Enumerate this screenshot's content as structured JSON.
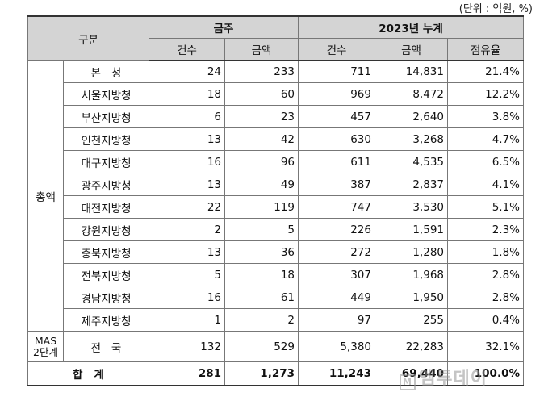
{
  "unit_note": "(단위 : 억원, %)",
  "header": {
    "category": "구분",
    "monthly": "금주",
    "cumulative": "2023년 누계",
    "count": "건수",
    "amount": "금액",
    "share": "점유율"
  },
  "group_label": "총액",
  "rows": [
    {
      "name": "본   청",
      "w_count": "24",
      "w_amount": "233",
      "c_count": "711",
      "c_amount": "14,831",
      "share": "21.4%"
    },
    {
      "name": "서울지방청",
      "w_count": "18",
      "w_amount": "60",
      "c_count": "969",
      "c_amount": "8,472",
      "share": "12.2%"
    },
    {
      "name": "부산지방청",
      "w_count": "6",
      "w_amount": "23",
      "c_count": "457",
      "c_amount": "2,640",
      "share": "3.8%"
    },
    {
      "name": "인천지방청",
      "w_count": "13",
      "w_amount": "42",
      "c_count": "630",
      "c_amount": "3,268",
      "share": "4.7%"
    },
    {
      "name": "대구지방청",
      "w_count": "16",
      "w_amount": "96",
      "c_count": "611",
      "c_amount": "4,535",
      "share": "6.5%"
    },
    {
      "name": "광주지방청",
      "w_count": "13",
      "w_amount": "49",
      "c_count": "387",
      "c_amount": "2,837",
      "share": "4.1%"
    },
    {
      "name": "대전지방청",
      "w_count": "22",
      "w_amount": "119",
      "c_count": "747",
      "c_amount": "3,530",
      "share": "5.1%"
    },
    {
      "name": "강원지방청",
      "w_count": "2",
      "w_amount": "5",
      "c_count": "226",
      "c_amount": "1,591",
      "share": "2.3%"
    },
    {
      "name": "충북지방청",
      "w_count": "13",
      "w_amount": "36",
      "c_count": "272",
      "c_amount": "1,280",
      "share": "1.8%"
    },
    {
      "name": "전북지방청",
      "w_count": "5",
      "w_amount": "18",
      "c_count": "307",
      "c_amount": "1,968",
      "share": "2.8%"
    },
    {
      "name": "경남지방청",
      "w_count": "16",
      "w_amount": "61",
      "c_count": "449",
      "c_amount": "1,950",
      "share": "2.8%"
    },
    {
      "name": "제주지방청",
      "w_count": "1",
      "w_amount": "2",
      "c_count": "97",
      "c_amount": "255",
      "share": "0.4%"
    }
  ],
  "mas": {
    "label_line1": "MAS",
    "label_line2": "2단계",
    "name": "전   국",
    "w_count": "132",
    "w_amount": "529",
    "c_count": "5,380",
    "c_amount": "22,283",
    "share": "32.1%"
  },
  "total": {
    "label": "합   계",
    "w_count": "281",
    "w_amount": "1,273",
    "c_count": "11,243",
    "c_amount": "69,440",
    "share": "100.0%"
  },
  "watermark": {
    "box": "M",
    "text": "엠투데이"
  }
}
